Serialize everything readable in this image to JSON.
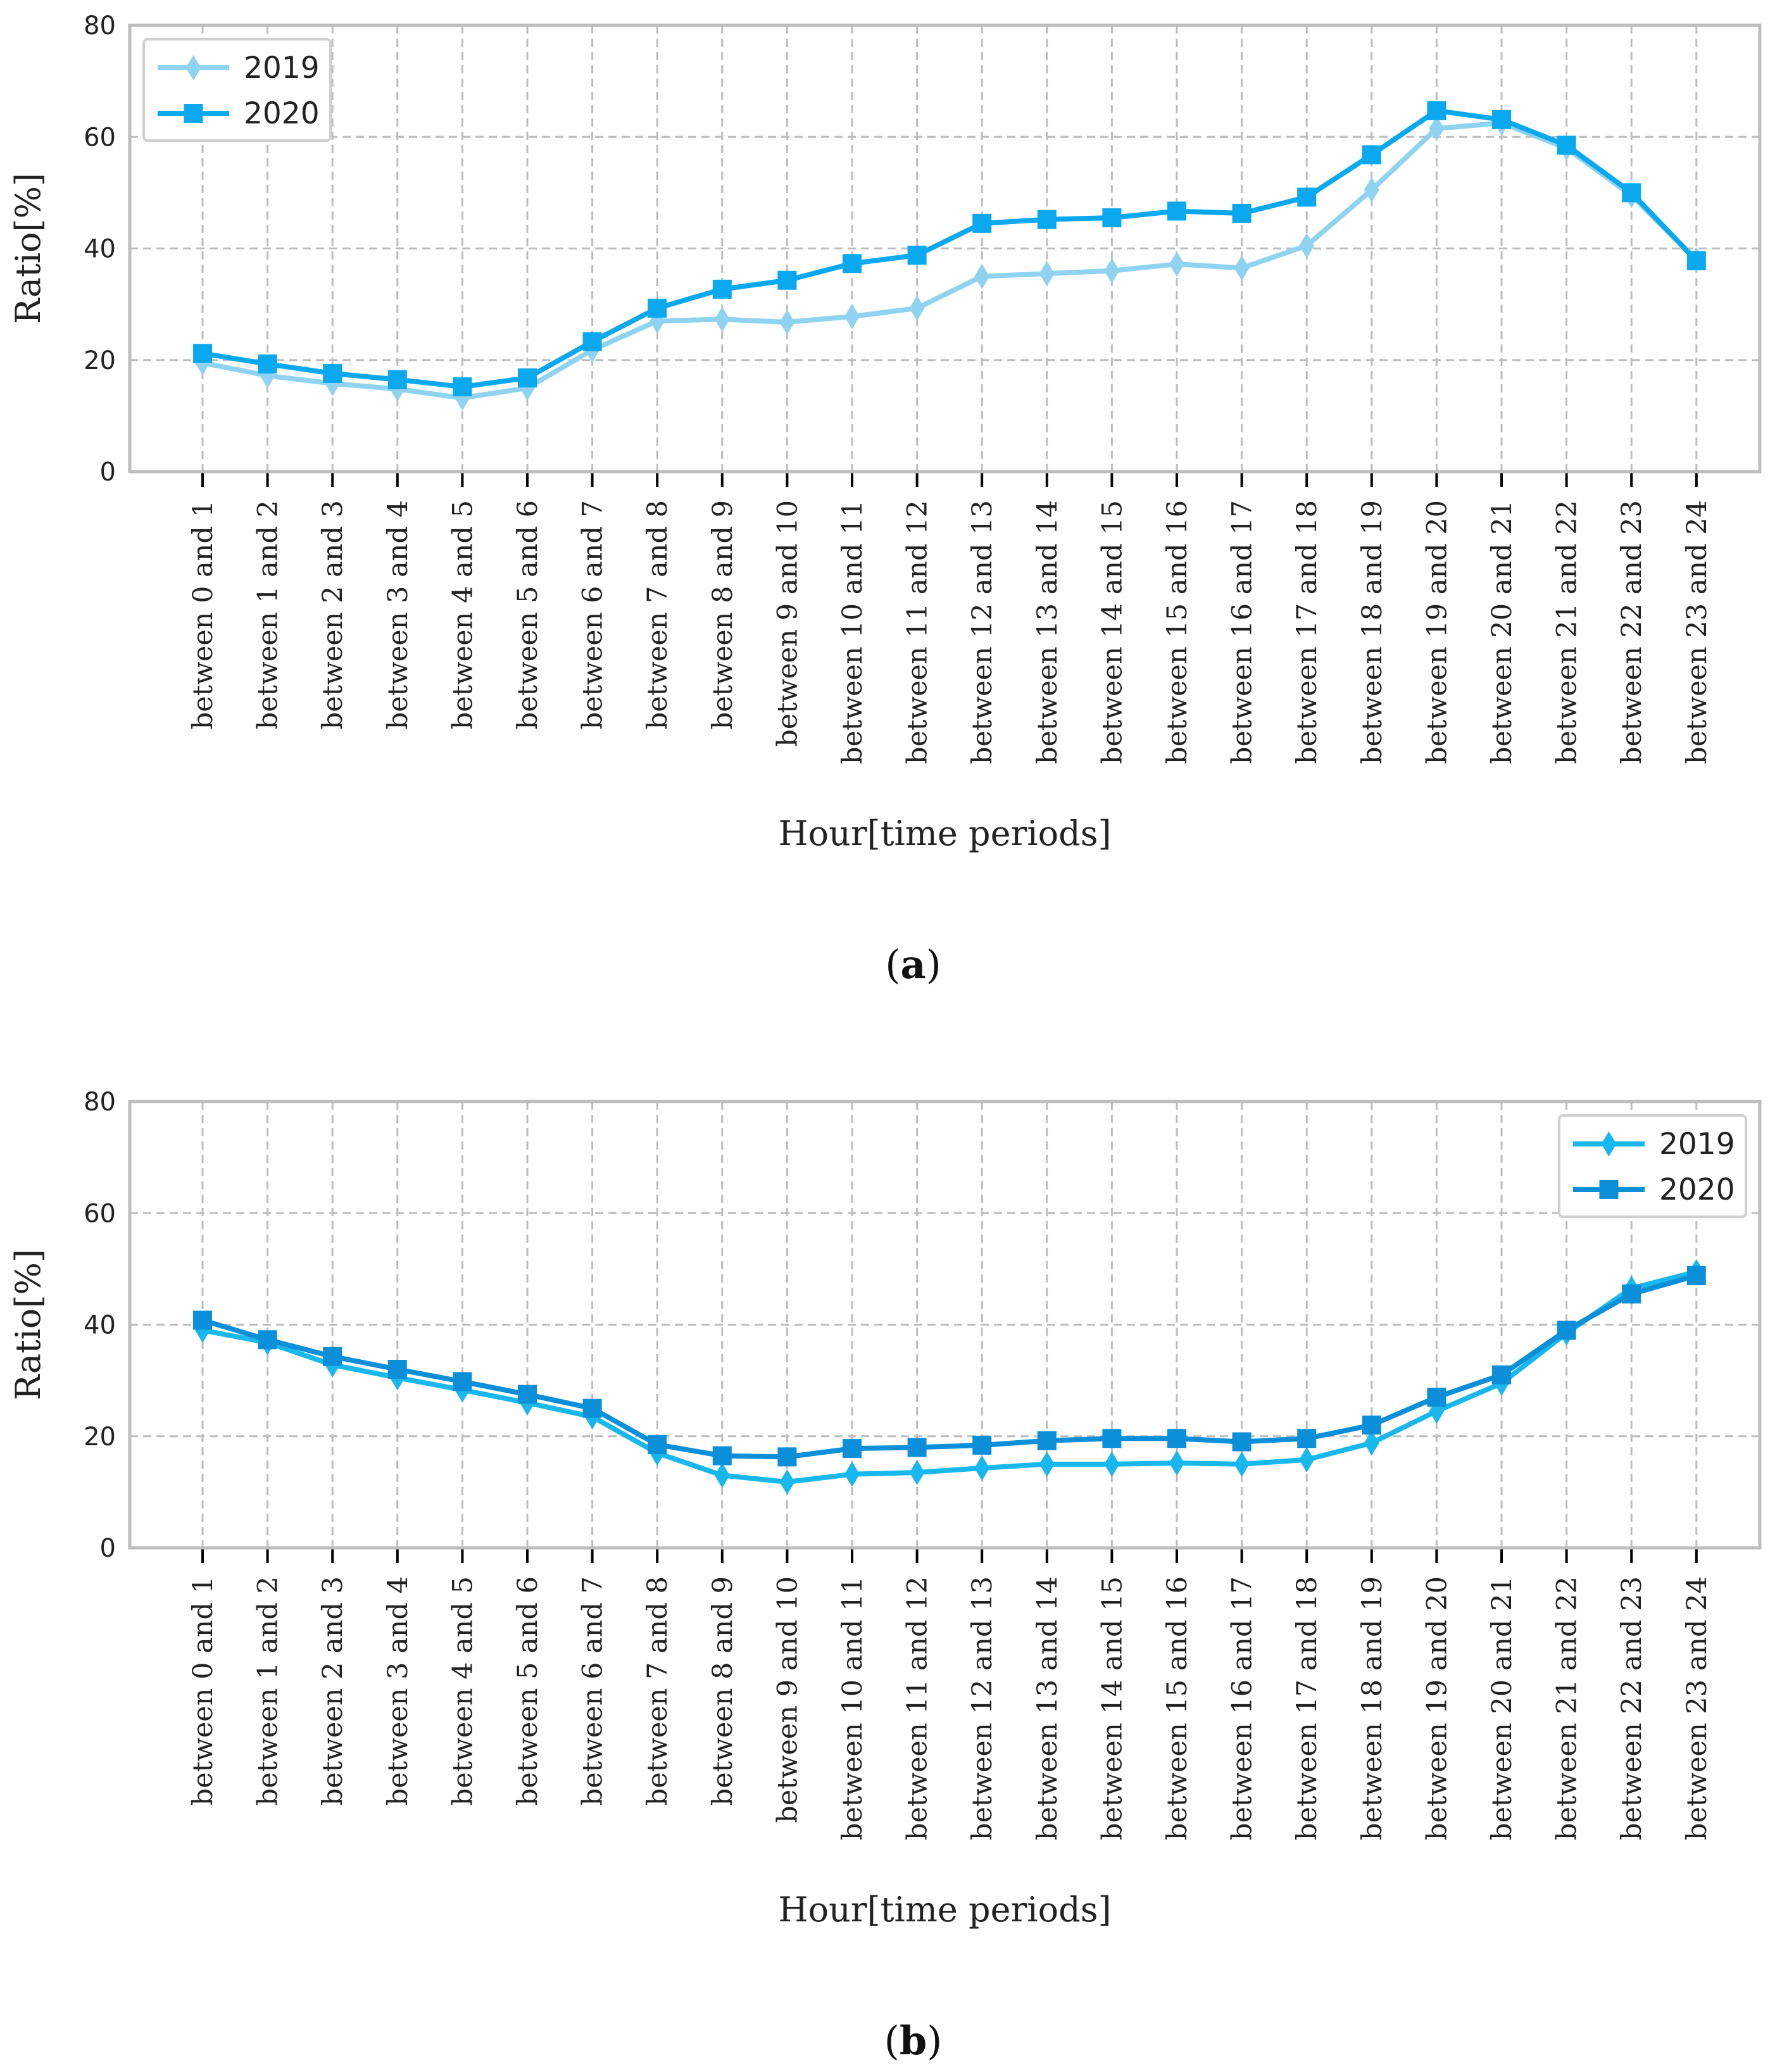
{
  "chart_data": [
    {
      "type": "line",
      "panel_label": "a",
      "title": "",
      "xlabel": "Hour[time periods]",
      "ylabel": "Ratio[%]",
      "ylim": [
        0,
        80
      ],
      "yticks": [
        "0",
        "20",
        "40",
        "60",
        "80"
      ],
      "grid": true,
      "legend_position": "top-left",
      "categories": [
        "between 0 and 1",
        "between 1 and 2",
        "between 2 and 3",
        "between 3 and 4",
        "between 4 and 5",
        "between 5 and 6",
        "between 6 and 7",
        "between 7 and 8",
        "between 8 and 9",
        "between 9 and 10",
        "between 10 and 11",
        "between 11 and 12",
        "between 12 and 13",
        "between 13 and 14",
        "between 14 and 15",
        "between 15 and 16",
        "between 16 and 17",
        "between 17 and 18",
        "between 18 and 19",
        "between 19 and 20",
        "between 20 and 21",
        "between 21 and 22",
        "between 22 and 23",
        "between 23 and 24"
      ],
      "series": [
        {
          "name": "2019",
          "marker": "diamond",
          "color": "#8fd3f0",
          "values": [
            19.5,
            17.2,
            15.8,
            14.8,
            13.2,
            15.0,
            21.8,
            27.0,
            27.3,
            26.8,
            27.8,
            29.3,
            35.0,
            35.5,
            36.0,
            37.2,
            36.5,
            40.5,
            50.5,
            61.5,
            62.5,
            58.0,
            49.5,
            38.0
          ]
        },
        {
          "name": "2020",
          "marker": "square",
          "color": "#0aa8ee",
          "values": [
            21.2,
            19.3,
            17.6,
            16.5,
            15.2,
            16.8,
            23.3,
            29.3,
            32.7,
            34.3,
            37.3,
            38.8,
            44.5,
            45.2,
            45.5,
            46.7,
            46.3,
            49.2,
            56.8,
            64.7,
            63.1,
            58.5,
            50.0,
            37.8
          ]
        }
      ]
    },
    {
      "type": "line",
      "panel_label": "b",
      "title": "",
      "xlabel": "Hour[time periods]",
      "ylabel": "Ratio[%]",
      "ylim": [
        0,
        80
      ],
      "yticks": [
        "0",
        "20",
        "40",
        "60",
        "80"
      ],
      "grid": true,
      "legend_position": "top-right",
      "categories": [
        "between 0 and 1",
        "between 1 and 2",
        "between 2 and 3",
        "between 3 and 4",
        "between 4 and 5",
        "between 5 and 6",
        "between 6 and 7",
        "between 7 and 8",
        "between 8 and 9",
        "between 9 and 10",
        "between 10 and 11",
        "between 11 and 12",
        "between 12 and 13",
        "between 13 and 14",
        "between 14 and 15",
        "between 15 and 16",
        "between 16 and 17",
        "between 17 and 18",
        "between 18 and 19",
        "between 19 and 20",
        "between 20 and 21",
        "between 21 and 22",
        "between 22 and 23",
        "between 23 and 24"
      ],
      "series": [
        {
          "name": "2019",
          "marker": "diamond",
          "color": "#18b8ee",
          "values": [
            39.0,
            36.8,
            32.8,
            30.5,
            28.3,
            26.0,
            23.5,
            17.0,
            13.0,
            11.8,
            13.2,
            13.5,
            14.3,
            15.0,
            15.0,
            15.2,
            15.0,
            15.8,
            18.8,
            24.5,
            29.5,
            38.5,
            46.5,
            49.5
          ]
        },
        {
          "name": "2020",
          "marker": "square",
          "color": "#0a8fd8",
          "values": [
            40.8,
            37.3,
            34.3,
            32.0,
            29.8,
            27.5,
            25.0,
            18.5,
            16.5,
            16.3,
            17.8,
            18.0,
            18.4,
            19.2,
            19.6,
            19.6,
            19.0,
            19.6,
            22.0,
            27.0,
            31.0,
            39.0,
            45.5,
            48.8
          ]
        }
      ]
    }
  ]
}
